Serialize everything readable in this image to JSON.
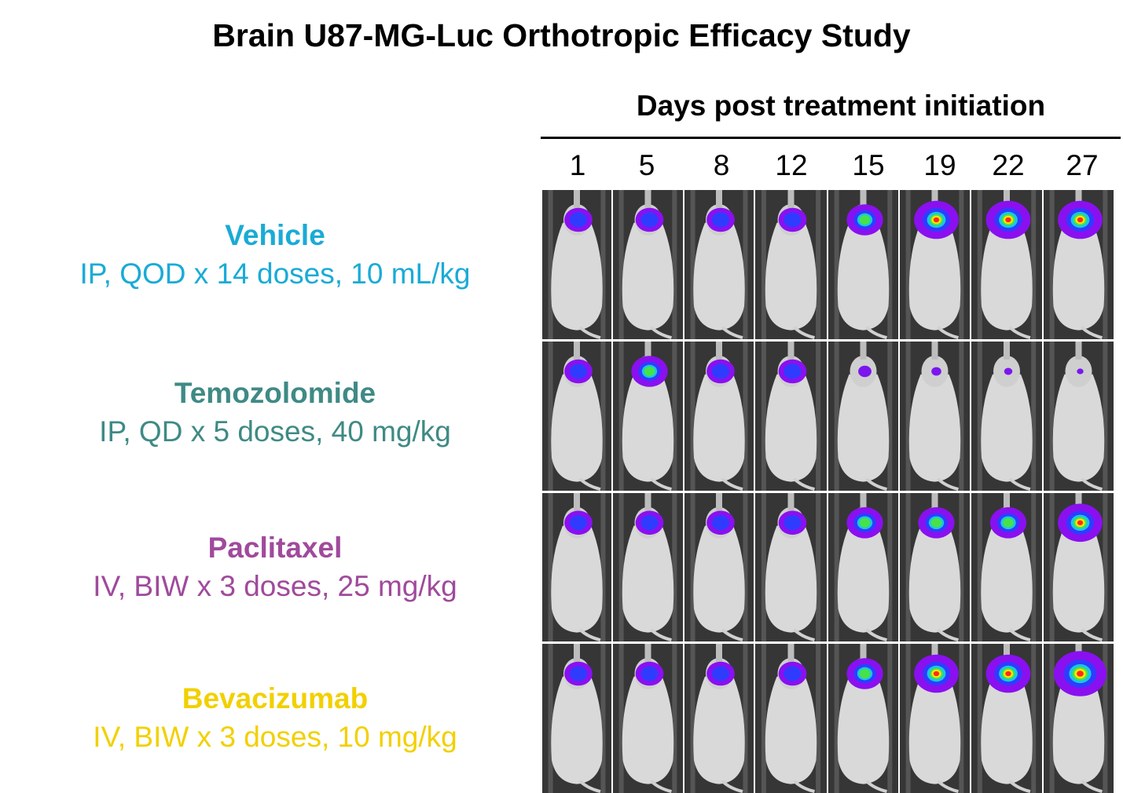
{
  "title": "Brain U87-MG-Luc Orthotropic Efficacy Study",
  "axis_title": "Days post treatment initiation",
  "days": [
    "1",
    "5",
    "8",
    "12",
    "15",
    "19",
    "22",
    "27"
  ],
  "groups": [
    {
      "name": "Vehicle",
      "dose": "IP, QOD x 14 doses, 10 mL/kg",
      "color": "#1aabd6",
      "signal": [
        1,
        1,
        1,
        1,
        2,
        3,
        3,
        3
      ]
    },
    {
      "name": "Temozolomide",
      "dose": "IP, QD x 5 doses, 40 mg/kg",
      "color": "#3f8a85",
      "signal": [
        1,
        2,
        1,
        1,
        0.5,
        0.3,
        0.2,
        0.1
      ]
    },
    {
      "name": "Paclitaxel",
      "dose": "IV, BIW x 3 doses, 25 mg/kg",
      "color": "#a04a9c",
      "signal": [
        1,
        1,
        1,
        1,
        2,
        2,
        2,
        3
      ]
    },
    {
      "name": "Bevacizumab",
      "dose": "IV, BIW x 3 doses, 10 mg/kg",
      "color": "#f2d000",
      "signal": [
        1,
        1,
        1,
        1,
        2,
        3,
        3,
        4
      ]
    }
  ]
}
